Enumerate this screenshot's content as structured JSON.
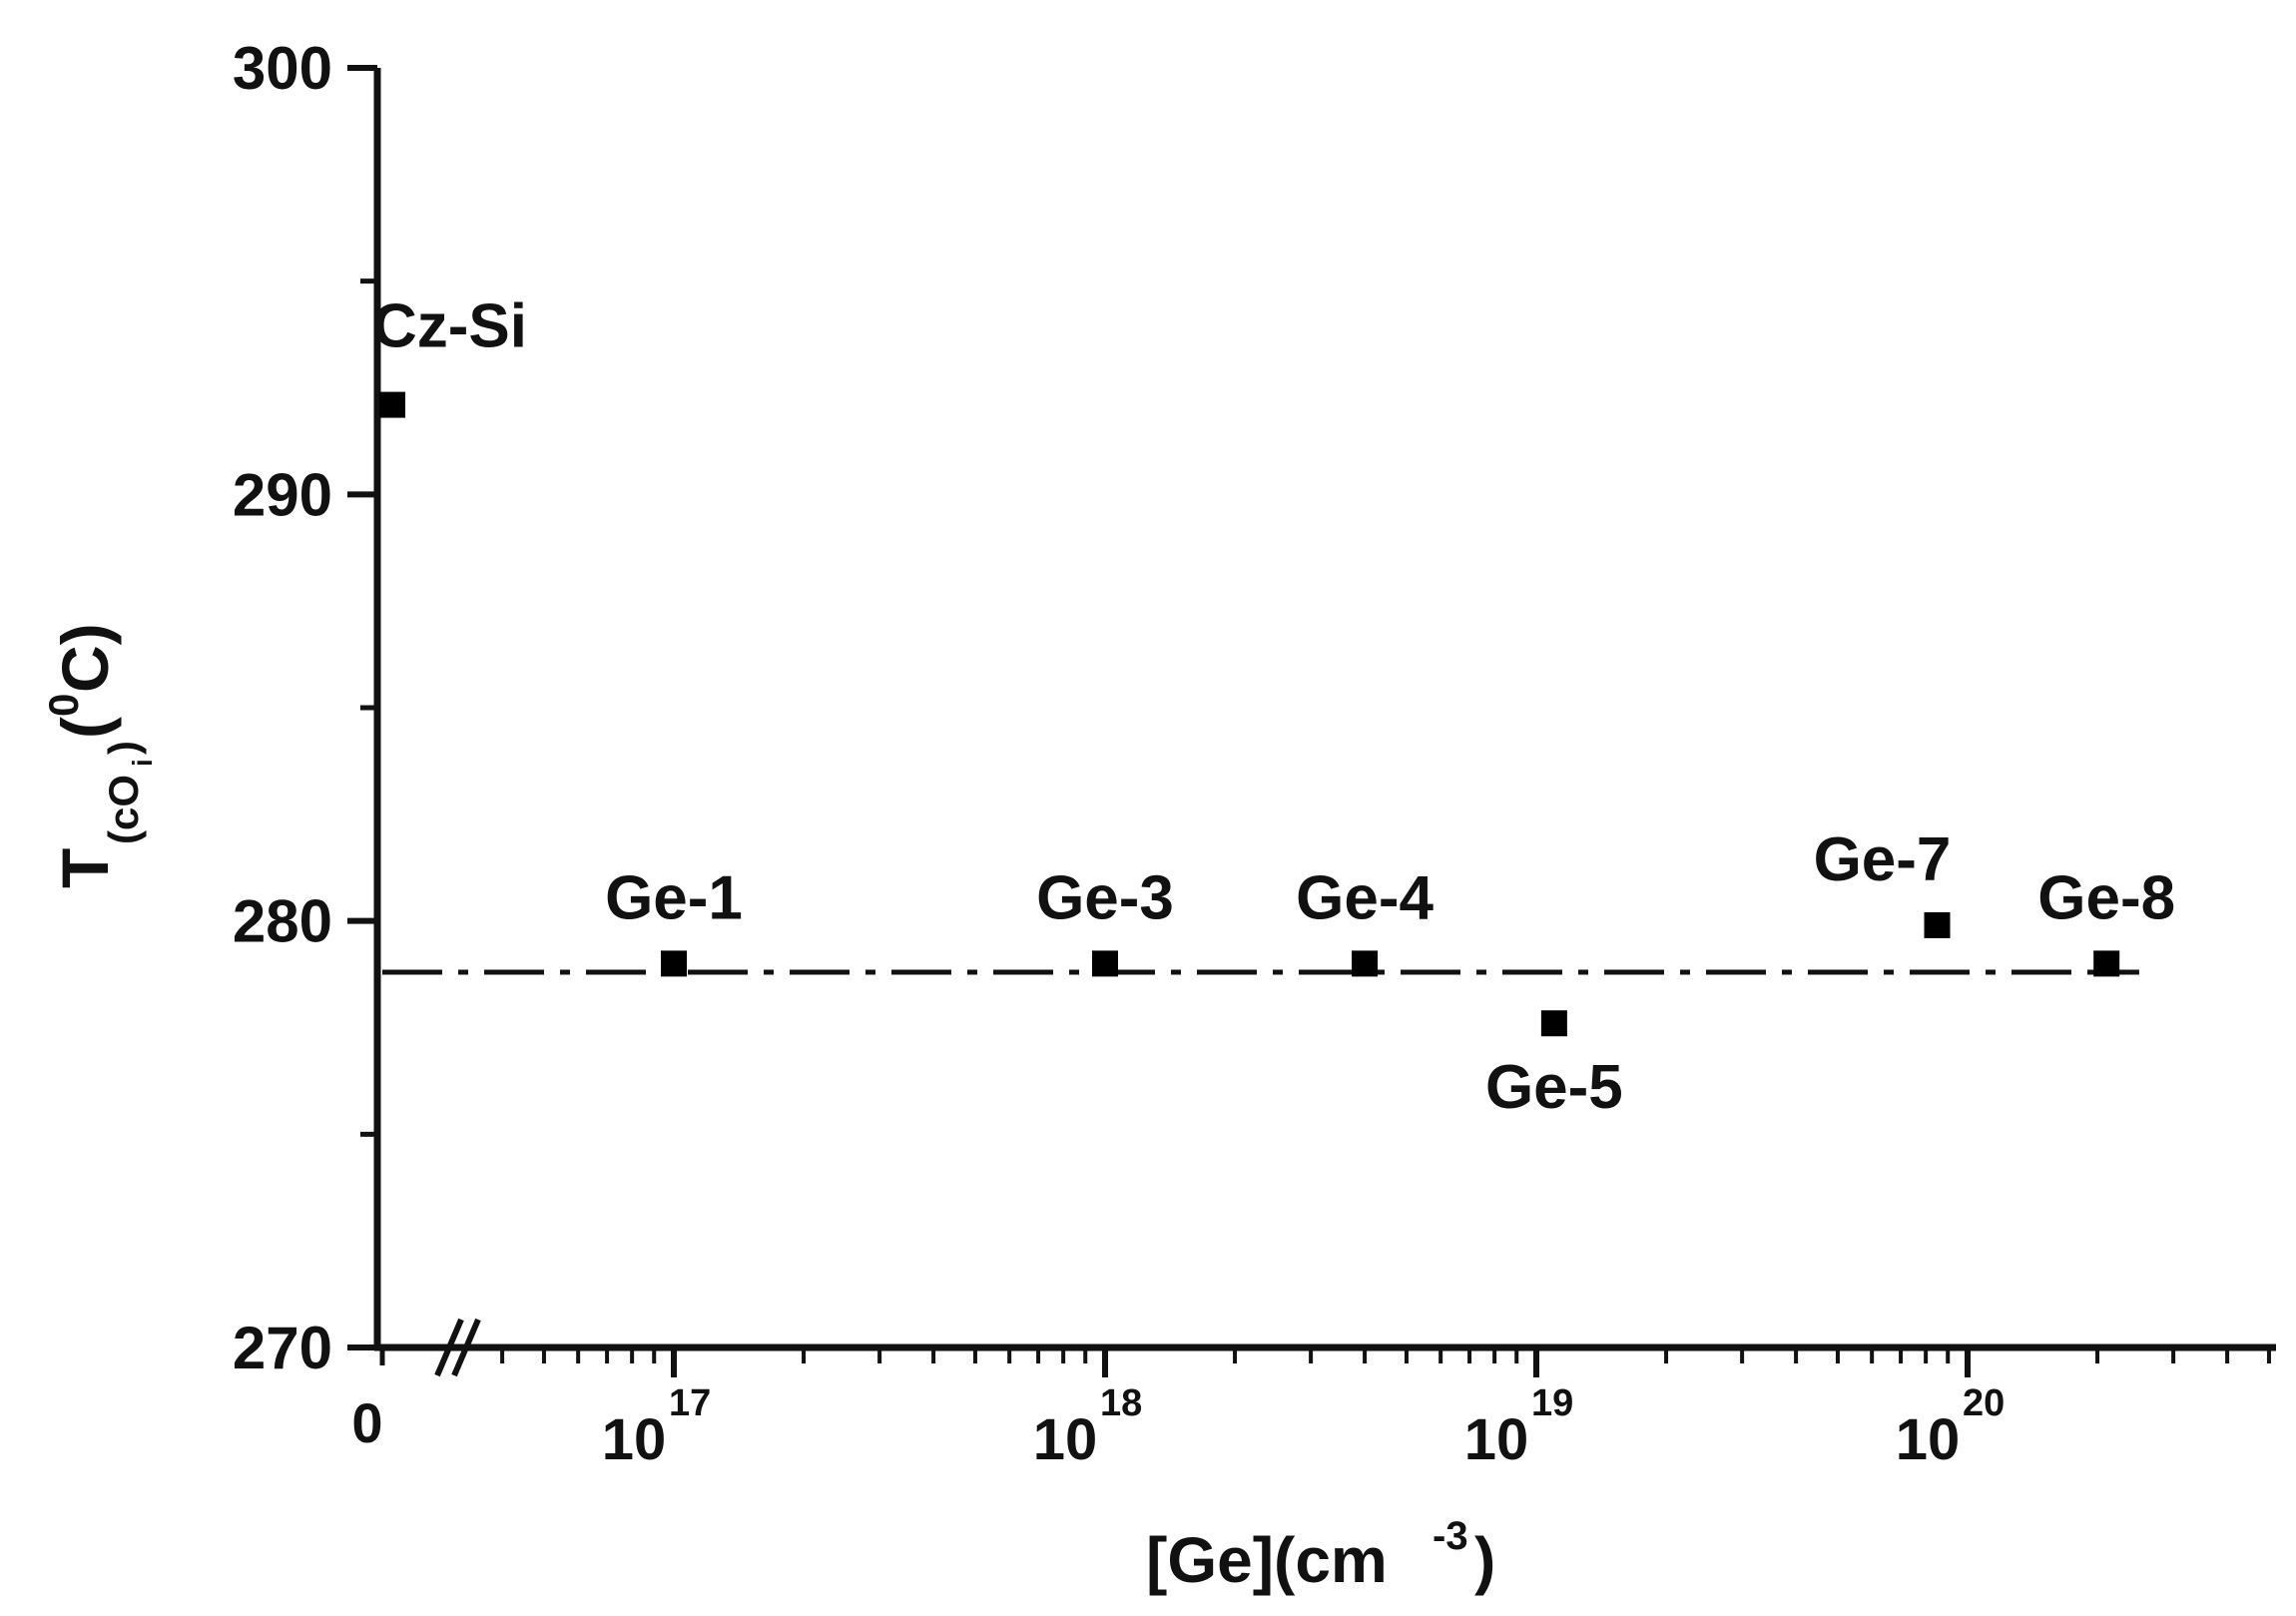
{
  "chart_data": {
    "type": "scatter",
    "title": "",
    "xlabel": {
      "text": "[Ge](cm",
      "sup": "-3",
      "close": ")"
    },
    "ylabel": {
      "text": "T",
      "sub": "(cO",
      "subsub": "i",
      "sub_close": ")",
      "paren": "(",
      "sup": "0",
      "unit": "C)"
    },
    "x_scale": "log-with-break",
    "ylim": [
      270,
      300
    ],
    "yticks": [
      "270",
      "280",
      "290",
      "300"
    ],
    "x_zero_label": "0",
    "xticks": [
      {
        "base": "10",
        "exp": "17",
        "value": 1e+17
      },
      {
        "base": "10",
        "exp": "18",
        "value": 1e+18
      },
      {
        "base": "10",
        "exp": "19",
        "value": 1e+19
      },
      {
        "base": "10",
        "exp": "20",
        "value": 1e+20
      }
    ],
    "points": [
      {
        "label": "Cz-Si",
        "x": 0,
        "y": 292.1,
        "label_pos": "above-right"
      },
      {
        "label": "Ge-1",
        "x": 1e+17,
        "y": 279.0,
        "label_pos": "above"
      },
      {
        "label": "Ge-3",
        "x": 1e+18,
        "y": 279.0,
        "label_pos": "above"
      },
      {
        "label": "Ge-4",
        "x": 4e+18,
        "y": 279.0,
        "label_pos": "above"
      },
      {
        "label": "Ge-5",
        "x": 1.1e+19,
        "y": 277.6,
        "label_pos": "below"
      },
      {
        "label": "Ge-7",
        "x": 8.5e+19,
        "y": 279.9,
        "label_pos": "above-left"
      },
      {
        "label": "Ge-8",
        "x": 2.1e+20,
        "y": 279.0,
        "label_pos": "above"
      }
    ],
    "reference_line": {
      "style": "dash-dot",
      "y": 278.8,
      "x_range": [
        0,
        2.5e+20
      ]
    },
    "marker": "filled-square",
    "grid": false,
    "legend": "none"
  }
}
